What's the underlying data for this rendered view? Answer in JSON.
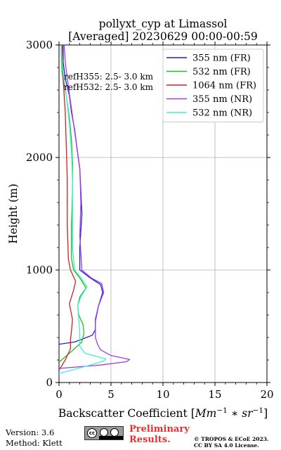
{
  "chart_data": {
    "type": "line",
    "title": "pollyxt_cyp at Limassol",
    "subtitle": "[Averaged] 20230629 00:00-00:59",
    "xlabel": "Backscatter Coefficient [",
    "xlabel_unit": "Mm",
    "xlabel_unit_exp1": "−1",
    "xlabel_mid": " ∗ sr",
    "xlabel_unit_exp2": "−1",
    "xlabel_end": "]",
    "ylabel": "Height (m)",
    "xlim": [
      0,
      20
    ],
    "ylim": [
      0,
      3000
    ],
    "xticks": [
      0,
      5,
      10,
      15,
      20
    ],
    "yticks": [
      0,
      1000,
      2000,
      3000
    ],
    "grid": true,
    "legend_position": "top-right",
    "annotations": [
      "refH355:  2.5- 3.0 km",
      "refH532:  2.5- 3.0 km"
    ],
    "series": [
      {
        "name": "355 nm (FR)",
        "color": "#1f1fd6",
        "points": [
          [
            0.0,
            340
          ],
          [
            1.5,
            360
          ],
          [
            3.2,
            420
          ],
          [
            3.5,
            470
          ],
          [
            3.5,
            560
          ],
          [
            3.8,
            680
          ],
          [
            4.2,
            800
          ],
          [
            4.0,
            870
          ],
          [
            3.0,
            930
          ],
          [
            2.0,
            1000
          ],
          [
            2.0,
            1200
          ],
          [
            2.2,
            1500
          ],
          [
            2.1,
            1700
          ],
          [
            2.0,
            1900
          ],
          [
            1.7,
            2100
          ],
          [
            1.5,
            2250
          ],
          [
            1.2,
            2400
          ],
          [
            1.0,
            2550
          ],
          [
            0.6,
            2700
          ],
          [
            0.4,
            2850
          ],
          [
            0.4,
            3000
          ]
        ]
      },
      {
        "name": "532 nm (FR)",
        "color": "#1fc01f",
        "points": [
          [
            0.0,
            180
          ],
          [
            1.0,
            260
          ],
          [
            2.2,
            360
          ],
          [
            2.4,
            440
          ],
          [
            2.3,
            520
          ],
          [
            1.9,
            600
          ],
          [
            1.8,
            680
          ],
          [
            2.0,
            760
          ],
          [
            2.6,
            840
          ],
          [
            2.0,
            930
          ],
          [
            1.4,
            1000
          ],
          [
            1.2,
            1100
          ],
          [
            1.2,
            1400
          ],
          [
            1.3,
            1700
          ],
          [
            1.3,
            1950
          ],
          [
            1.2,
            2150
          ],
          [
            1.0,
            2350
          ],
          [
            0.7,
            2550
          ],
          [
            0.3,
            2750
          ],
          [
            0.2,
            3000
          ]
        ]
      },
      {
        "name": "1064 nm (FR)",
        "color": "#d61f1f",
        "points": [
          [
            0.0,
            110
          ],
          [
            0.6,
            200
          ],
          [
            1.1,
            300
          ],
          [
            1.1,
            380
          ],
          [
            1.2,
            460
          ],
          [
            1.3,
            560
          ],
          [
            1.0,
            700
          ],
          [
            1.4,
            820
          ],
          [
            1.6,
            900
          ],
          [
            1.1,
            1000
          ],
          [
            0.9,
            1100
          ],
          [
            0.8,
            1400
          ],
          [
            0.8,
            1800
          ],
          [
            0.7,
            2100
          ],
          [
            0.6,
            2400
          ],
          [
            0.4,
            2700
          ],
          [
            0.3,
            3000
          ]
        ]
      },
      {
        "name": "355 nm (NR)",
        "color": "#a23de8",
        "points": [
          [
            0.0,
            125
          ],
          [
            4.0,
            155
          ],
          [
            6.5,
            185
          ],
          [
            6.8,
            205
          ],
          [
            5.0,
            240
          ],
          [
            4.0,
            290
          ],
          [
            3.7,
            340
          ],
          [
            3.5,
            400
          ],
          [
            3.5,
            540
          ],
          [
            3.8,
            680
          ],
          [
            4.3,
            800
          ],
          [
            4.1,
            880
          ],
          [
            3.1,
            930
          ],
          [
            2.2,
            1000
          ],
          [
            2.0,
            1300
          ],
          [
            2.1,
            1600
          ],
          [
            2.0,
            1900
          ],
          [
            1.7,
            2100
          ],
          [
            1.4,
            2300
          ],
          [
            1.1,
            2500
          ],
          [
            0.8,
            2700
          ],
          [
            0.6,
            2850
          ],
          [
            0.5,
            3000
          ]
        ]
      },
      {
        "name": "532 nm (NR)",
        "color": "#3ff0cf",
        "points": [
          [
            0.0,
            80
          ],
          [
            2.0,
            130
          ],
          [
            3.2,
            160
          ],
          [
            4.3,
            190
          ],
          [
            4.5,
            210
          ],
          [
            2.5,
            260
          ],
          [
            2.0,
            320
          ],
          [
            2.0,
            440
          ],
          [
            1.9,
            560
          ],
          [
            1.8,
            680
          ],
          [
            2.1,
            760
          ],
          [
            2.7,
            850
          ],
          [
            2.1,
            930
          ],
          [
            1.5,
            1000
          ],
          [
            1.3,
            1200
          ],
          [
            1.3,
            1500
          ],
          [
            1.3,
            1800
          ],
          [
            1.2,
            2050
          ],
          [
            1.0,
            2300
          ],
          [
            0.7,
            2550
          ],
          [
            0.4,
            2750
          ],
          [
            0.2,
            3000
          ]
        ]
      }
    ]
  },
  "footer": {
    "version": "Version: 3.6",
    "method": "Method: Klett",
    "preliminary": "Preliminary Results.",
    "copyright_line1": "© TROPOS & ECoE 2023.",
    "copyright_line2": "CC BY SA 4.0 License.",
    "cc_badge_text": "cc"
  }
}
